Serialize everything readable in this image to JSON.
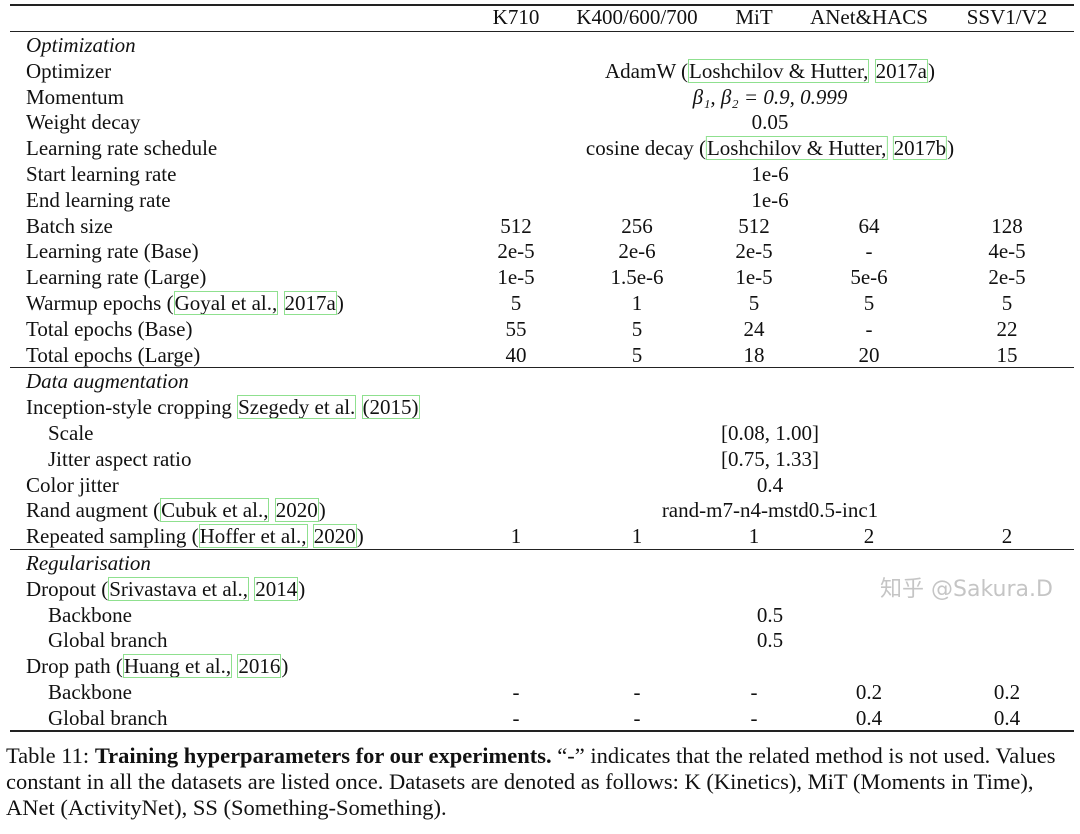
{
  "columns": [
    "K710",
    "K400/600/700",
    "MiT",
    "ANet&HACS",
    "SSV1/V2"
  ],
  "sections": [
    {
      "title": "Optimization",
      "rows": [
        {
          "label": [
            "Optimizer"
          ],
          "span": [
            "AdamW (",
            {
              "cite": "Loshchilov & Hutter,"
            },
            " ",
            {
              "cite": "2017a"
            },
            ")"
          ]
        },
        {
          "label": [
            "Momentum"
          ],
          "span": [
            {
              "math": "β₁, β₂ = 0.9, 0.999"
            }
          ]
        },
        {
          "label": [
            "Weight decay"
          ],
          "span": [
            "0.05"
          ]
        },
        {
          "label": [
            "Learning rate schedule"
          ],
          "span": [
            "cosine decay (",
            {
              "cite": "Loshchilov & Hutter,"
            },
            " ",
            {
              "cite": "2017b"
            },
            ")"
          ]
        },
        {
          "label": [
            "Start learning rate"
          ],
          "span": [
            "1e-6"
          ]
        },
        {
          "label": [
            "End learning rate"
          ],
          "span": [
            "1e-6"
          ]
        },
        {
          "label": [
            "Batch size"
          ],
          "values": [
            "512",
            "256",
            "512",
            "64",
            "128"
          ]
        },
        {
          "label": [
            "Learning rate (Base)"
          ],
          "values": [
            "2e-5",
            "2e-6",
            "2e-5",
            "-",
            "4e-5"
          ]
        },
        {
          "label": [
            "Learning rate (Large)"
          ],
          "values": [
            "1e-5",
            "1.5e-6",
            "1e-5",
            "5e-6",
            "2e-5"
          ]
        },
        {
          "label": [
            "Warmup epochs (",
            {
              "cite": "Goyal et al.,"
            },
            " ",
            {
              "cite": "2017a"
            },
            ")"
          ],
          "values": [
            "5",
            "1",
            "5",
            "5",
            "5"
          ]
        },
        {
          "label": [
            "Total epochs (Base)"
          ],
          "values": [
            "55",
            "5",
            "24",
            "-",
            "22"
          ]
        },
        {
          "label": [
            "Total epochs (Large)"
          ],
          "values": [
            "40",
            "5",
            "18",
            "20",
            "15"
          ]
        }
      ]
    },
    {
      "title": "Data augmentation",
      "rows": [
        {
          "label": [
            "Inception-style cropping ",
            {
              "cite": "Szegedy et al."
            },
            " ",
            {
              "cite": "(2015)"
            }
          ]
        },
        {
          "label": [
            "Scale"
          ],
          "indent": true,
          "span": [
            "[0.08, 1.00]"
          ]
        },
        {
          "label": [
            "Jitter aspect ratio"
          ],
          "indent": true,
          "span": [
            "[0.75, 1.33]"
          ]
        },
        {
          "label": [
            "Color jitter"
          ],
          "span": [
            "0.4"
          ]
        },
        {
          "label": [
            "Rand augment (",
            {
              "cite": "Cubuk et al.,"
            },
            " ",
            {
              "cite": "2020"
            },
            ")"
          ],
          "span": [
            "rand-m7-n4-mstd0.5-inc1"
          ]
        },
        {
          "label": [
            "Repeated sampling (",
            {
              "cite": "Hoffer et al.,"
            },
            " ",
            {
              "cite": "2020"
            },
            ")"
          ],
          "values": [
            "1",
            "1",
            "1",
            "2",
            "2"
          ]
        }
      ]
    },
    {
      "title": "Regularisation",
      "rows": [
        {
          "label": [
            "Dropout (",
            {
              "cite": "Srivastava et al.,"
            },
            " ",
            {
              "cite": "2014"
            },
            ")"
          ]
        },
        {
          "label": [
            "Backbone"
          ],
          "indent": true,
          "span": [
            "0.5"
          ]
        },
        {
          "label": [
            "Global branch"
          ],
          "indent": true,
          "span": [
            "0.5"
          ]
        },
        {
          "label": [
            "Drop path (",
            {
              "cite": "Huang et al.,"
            },
            " ",
            {
              "cite": "2016"
            },
            ")"
          ]
        },
        {
          "label": [
            "Backbone"
          ],
          "indent": true,
          "values": [
            "-",
            "-",
            "-",
            "0.2",
            "0.2"
          ]
        },
        {
          "label": [
            "Global branch"
          ],
          "indent": true,
          "values": [
            "-",
            "-",
            "-",
            "0.4",
            "0.4"
          ]
        }
      ]
    }
  ],
  "caption": {
    "number": "Table 11:",
    "bold": "Training hyperparameters for our experiments.",
    "text": "“-” indicates that the related method is not used. Values constant in all the datasets are listed once. Datasets are denoted as follows: K (Kinetics), MiT (Moments in Time), ANet (ActivityNet), SS (Something-Something)."
  },
  "watermark": "知乎 @Sakura.D",
  "colors": {
    "citation_box": "#8fe08f",
    "text": "#111111",
    "rule": "#222222"
  }
}
